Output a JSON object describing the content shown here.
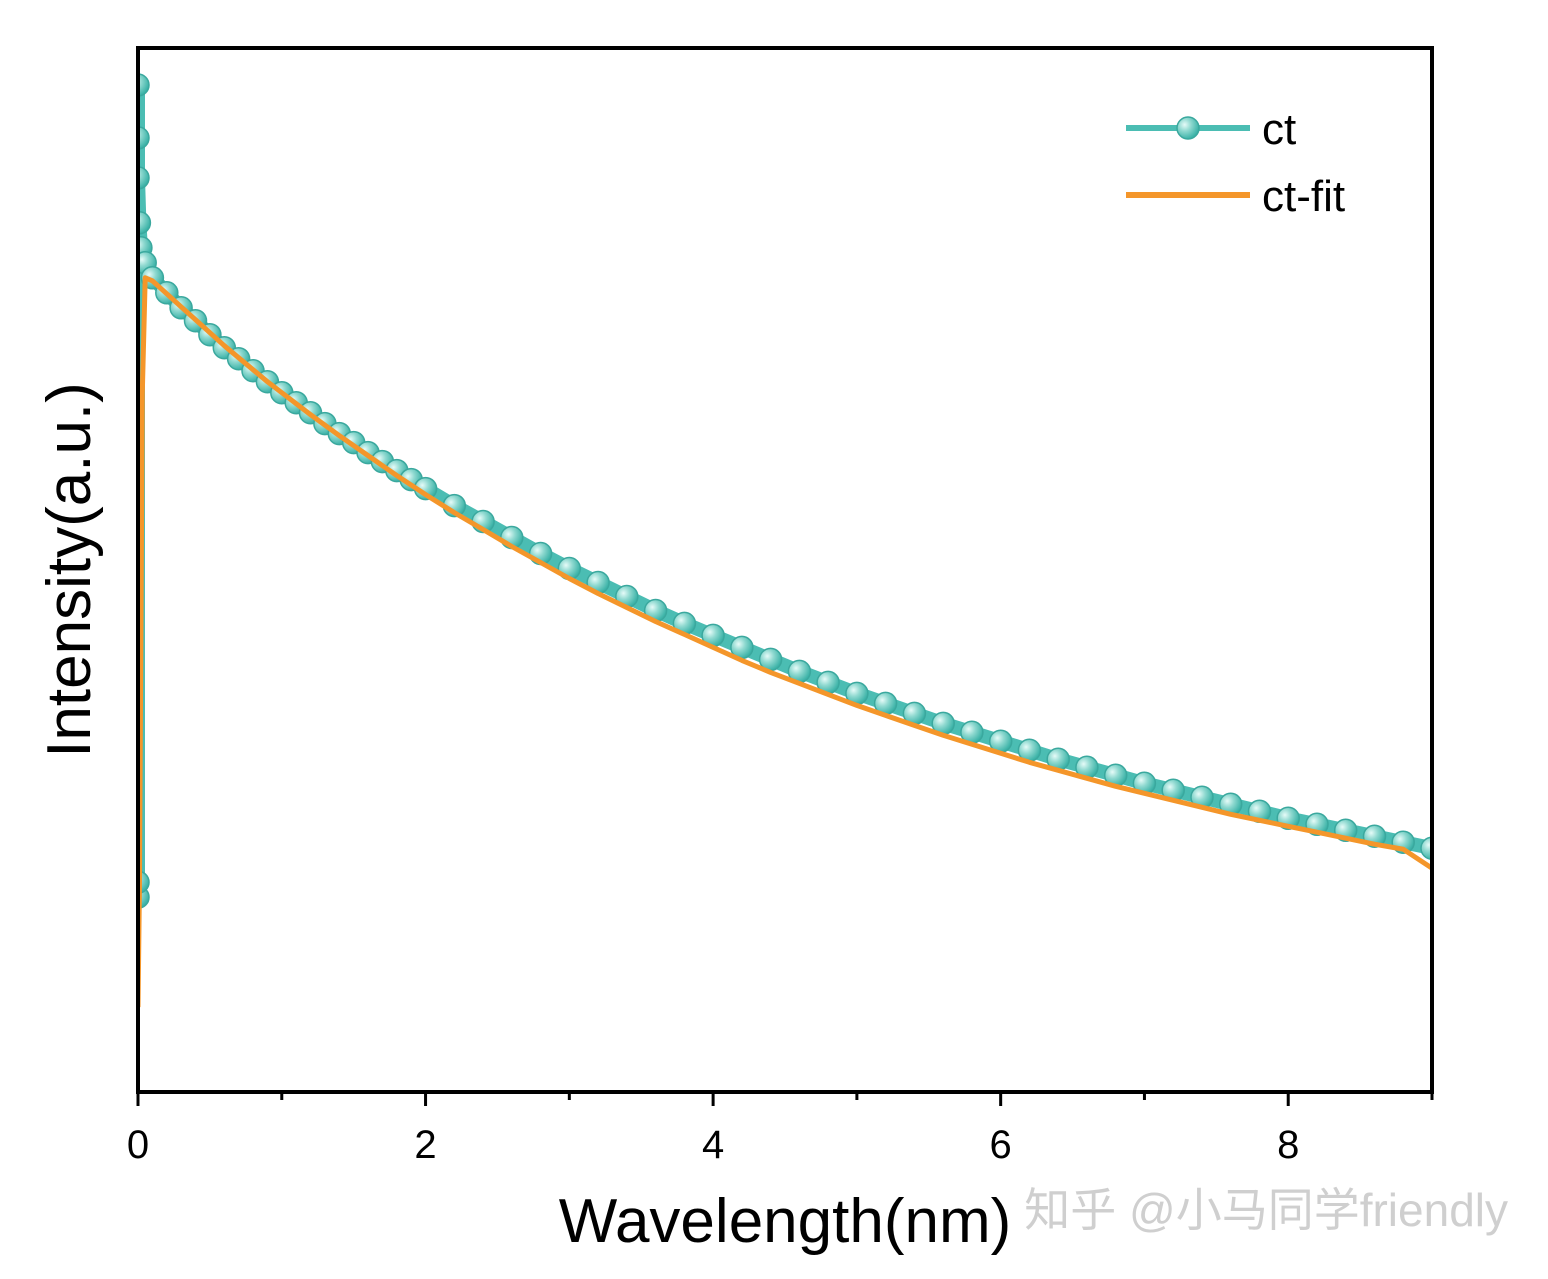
{
  "chart_data": {
    "type": "scatter",
    "title": "",
    "xlabel": "Wavelength(nm)",
    "ylabel": "Intensity(a.u.)",
    "xlim": [
      0,
      9
    ],
    "ylim": [
      0,
      1.045
    ],
    "xticks": [
      0,
      2,
      4,
      6,
      8
    ],
    "xtick_labels": [
      "0",
      "2",
      "4",
      "6",
      "8"
    ],
    "x_minor_ticks": [
      1,
      3,
      5,
      7,
      9
    ],
    "yticks_shown": false,
    "legend_position": "top-right",
    "series": [
      {
        "name": "ct",
        "kind": "scatter-line",
        "color": "#4bbdb3",
        "marker_highlight": "#bdeee8",
        "x": [
          0,
          0,
          0,
          0,
          0,
          0.01,
          0.02,
          0.05,
          0.1,
          0.2,
          0.3,
          0.4,
          0.5,
          0.6,
          0.7,
          0.8,
          0.9,
          1.0,
          1.1,
          1.2,
          1.3,
          1.4,
          1.5,
          1.6,
          1.7,
          1.8,
          1.9,
          2.0,
          2.2,
          2.4,
          2.6,
          2.8,
          3.0,
          3.2,
          3.4,
          3.6,
          3.8,
          4.0,
          4.2,
          4.4,
          4.6,
          4.8,
          5.0,
          5.2,
          5.4,
          5.6,
          5.8,
          6.0,
          6.2,
          6.4,
          6.6,
          6.8,
          7.0,
          7.2,
          7.4,
          7.6,
          7.8,
          8.0,
          8.2,
          8.4,
          8.6,
          8.8,
          9.0
        ],
        "y": [
          0.195,
          0.21,
          1.008,
          0.955,
          0.915,
          0.87,
          0.845,
          0.83,
          0.815,
          0.8,
          0.785,
          0.772,
          0.758,
          0.745,
          0.734,
          0.722,
          0.711,
          0.7,
          0.69,
          0.68,
          0.669,
          0.659,
          0.65,
          0.64,
          0.631,
          0.622,
          0.613,
          0.604,
          0.587,
          0.571,
          0.555,
          0.539,
          0.524,
          0.51,
          0.496,
          0.482,
          0.469,
          0.457,
          0.445,
          0.433,
          0.421,
          0.41,
          0.399,
          0.389,
          0.379,
          0.369,
          0.36,
          0.351,
          0.342,
          0.333,
          0.325,
          0.317,
          0.309,
          0.302,
          0.295,
          0.288,
          0.281,
          0.274,
          0.268,
          0.262,
          0.256,
          0.25,
          0.244
        ]
      },
      {
        "name": "ct-fit",
        "kind": "line",
        "color": "#f4962a",
        "x": [
          0,
          0.01,
          0.03,
          0.05,
          0.1,
          0.2,
          0.3,
          0.4,
          0.5,
          0.6,
          0.7,
          0.8,
          0.9,
          1.0,
          1.2,
          1.4,
          1.6,
          1.8,
          2.0,
          2.2,
          2.4,
          2.6,
          2.8,
          3.0,
          3.2,
          3.4,
          3.6,
          3.8,
          4.0,
          4.2,
          4.4,
          4.6,
          4.8,
          5.0,
          5.2,
          5.4,
          5.6,
          5.8,
          6.0,
          6.2,
          6.4,
          6.6,
          6.8,
          7.0,
          7.2,
          7.4,
          7.6,
          7.8,
          8.0,
          8.2,
          8.4,
          8.6,
          8.8,
          9.0
        ],
        "y": [
          0.085,
          0.2,
          0.7,
          0.815,
          0.812,
          0.799,
          0.786,
          0.773,
          0.76,
          0.747,
          0.735,
          0.723,
          0.711,
          0.7,
          0.678,
          0.657,
          0.637,
          0.617,
          0.598,
          0.58,
          0.563,
          0.546,
          0.53,
          0.514,
          0.499,
          0.485,
          0.471,
          0.458,
          0.445,
          0.432,
          0.42,
          0.409,
          0.398,
          0.387,
          0.377,
          0.367,
          0.357,
          0.348,
          0.339,
          0.33,
          0.322,
          0.314,
          0.306,
          0.299,
          0.292,
          0.285,
          0.278,
          0.272,
          0.266,
          0.26,
          0.254,
          0.248,
          0.243,
          0.224
        ]
      }
    ]
  },
  "watermark": "知乎 @小马同学friendly"
}
